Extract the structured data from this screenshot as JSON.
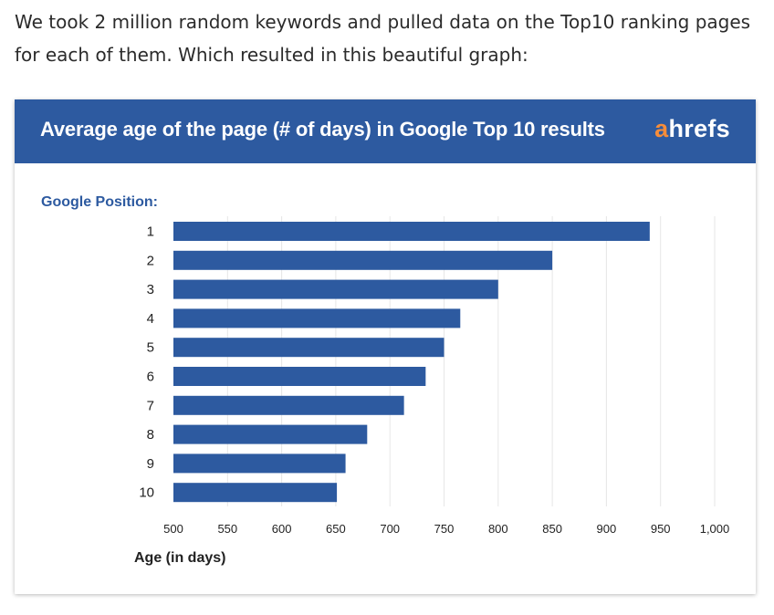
{
  "article": {
    "intro_text": "We took 2 million random keywords and pulled data on the Top10 ranking pages for each of them. Which resulted in this beautiful graph:"
  },
  "card": {
    "title": "Average age of the page (# of days) in Google Top 10 results",
    "logo": {
      "first": "a",
      "rest": "hrefs"
    }
  },
  "colors": {
    "header": "#2d5aa0",
    "bar": "#2d5aa0",
    "logo_accent": "#f68d3a",
    "label": "#2d5aa0",
    "grid": "#e6e6e6"
  },
  "chart_data": {
    "type": "bar",
    "orientation": "horizontal",
    "title": "Average age of the page (# of days) in Google Top 10 results",
    "ylabel": "Google Position:",
    "xlabel": "Age (in days)",
    "categories": [
      "1",
      "2",
      "3",
      "4",
      "5",
      "6",
      "7",
      "8",
      "9",
      "10"
    ],
    "values": [
      940,
      850,
      800,
      765,
      750,
      733,
      713,
      679,
      659,
      651
    ],
    "xlim": [
      500,
      1000
    ],
    "xticks": [
      500,
      550,
      600,
      650,
      700,
      750,
      800,
      850,
      900,
      950,
      1000
    ],
    "xtick_labels": [
      "500",
      "550",
      "600",
      "650",
      "700",
      "750",
      "800",
      "850",
      "900",
      "950",
      "1,000"
    ],
    "grid": true,
    "legend": "none"
  }
}
